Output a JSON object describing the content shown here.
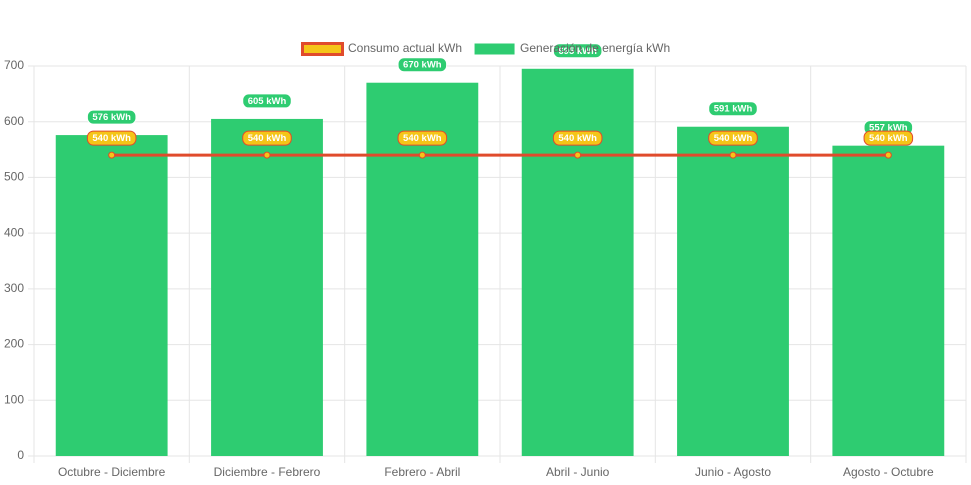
{
  "chart_data": {
    "type": "bar-line",
    "categories": [
      "Octubre - Diciembre",
      "Diciembre - Febrero",
      "Febrero - Abril",
      "Abril - Junio",
      "Junio - Agosto",
      "Agosto - Octubre"
    ],
    "series": [
      {
        "name": "Consumo actual kWh",
        "type": "line",
        "color": "#f5c518",
        "border_color": "#e04b2c",
        "values": [
          540,
          540,
          540,
          540,
          540,
          540
        ],
        "value_labels": [
          "540 kWh",
          "540 kWh",
          "540 kWh",
          "540 kWh",
          "540 kWh",
          "540 kWh"
        ]
      },
      {
        "name": "Generación de energía kWh",
        "type": "bar",
        "color": "#2ecc71",
        "values": [
          576,
          605,
          670,
          695,
          591,
          557
        ],
        "value_labels": [
          "576 kWh",
          "605 kWh",
          "670 kWh",
          "695 kWh",
          "591 kWh",
          "557 kWh"
        ]
      }
    ],
    "ylim": [
      0,
      700
    ],
    "yticks": [
      0,
      100,
      200,
      300,
      400,
      500,
      600,
      700
    ],
    "grid": true
  }
}
